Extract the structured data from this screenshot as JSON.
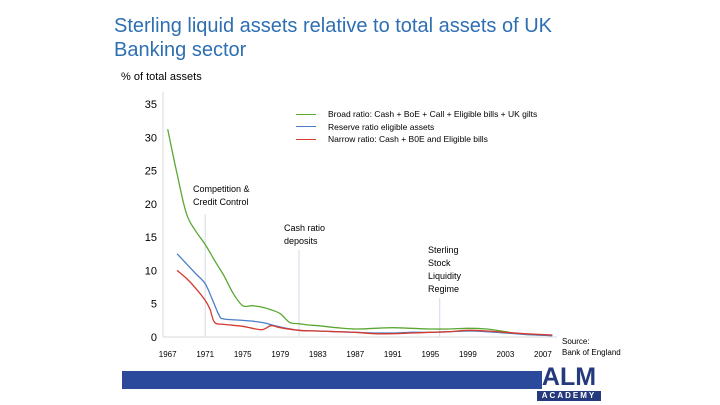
{
  "title": "Sterling liquid assets relative to total assets of UK Banking sector",
  "y_unit_label": "% of total assets",
  "source": "Source:\nBank of England",
  "logo": {
    "main": "ALM",
    "sub": "ACADEMY"
  },
  "colors": {
    "title": "#2e6fb3",
    "broad": "#5aa832",
    "reserve": "#4a7ec6",
    "narrow": "#d43a2e",
    "band": "#2b4a9b"
  },
  "annotations": [
    {
      "id": "cc",
      "text": "Competition &\nCredit Control",
      "x": 1971
    },
    {
      "id": "cash",
      "text": "Cash ratio\ndeposits",
      "x": 1981
    },
    {
      "id": "sterling",
      "text": "Sterling\nStock\nLiquidity\nRegime",
      "x": 1996
    }
  ],
  "chart_data": {
    "type": "line",
    "title": "Sterling liquid assets relative to total assets of UK Banking sector",
    "xlabel": "",
    "ylabel": "% of total assets",
    "xlim": [
      1966.5,
      2008.5
    ],
    "ylim": [
      0,
      35
    ],
    "x_ticks": [
      1967,
      1971,
      1975,
      1979,
      1983,
      1987,
      1991,
      1995,
      1999,
      2003,
      2007
    ],
    "y_ticks": [
      0,
      5,
      10,
      15,
      20,
      25,
      30,
      35
    ],
    "grid": false,
    "legend_position": "top-right",
    "series": [
      {
        "name": "Broad ratio:  Cash + BoE + Call + Eligible bills + UK gilts",
        "color": "#5aa832",
        "points": [
          [
            1967,
            31.2
          ],
          [
            1968,
            24.5
          ],
          [
            1969,
            18.5
          ],
          [
            1970,
            15.9
          ],
          [
            1971,
            13.9
          ],
          [
            1972,
            11.5
          ],
          [
            1973,
            9.2
          ],
          [
            1974,
            6.5
          ],
          [
            1975,
            4.7
          ],
          [
            1976,
            4.7
          ],
          [
            1977,
            4.5
          ],
          [
            1978,
            4.1
          ],
          [
            1979,
            3.5
          ],
          [
            1980,
            2.2
          ],
          [
            1981,
            2.0
          ],
          [
            1982,
            1.8
          ],
          [
            1983,
            1.7
          ],
          [
            1985,
            1.4
          ],
          [
            1987,
            1.2
          ],
          [
            1989,
            1.3
          ],
          [
            1991,
            1.4
          ],
          [
            1993,
            1.3
          ],
          [
            1995,
            1.2
          ],
          [
            1997,
            1.2
          ],
          [
            1999,
            1.3
          ],
          [
            2001,
            1.2
          ],
          [
            2003,
            0.8
          ],
          [
            2005,
            0.4
          ],
          [
            2008,
            0.25
          ]
        ]
      },
      {
        "name": "Reserve ratio eligible assets",
        "color": "#4a7ec6",
        "points": [
          [
            1968,
            12.5
          ],
          [
            1969,
            11.0
          ],
          [
            1970,
            9.5
          ],
          [
            1971,
            8.0
          ],
          [
            1971.8,
            5.5
          ],
          [
            1972.5,
            3.2
          ],
          [
            1973,
            2.7
          ],
          [
            1975,
            2.5
          ],
          [
            1977,
            2.2
          ],
          [
            1979,
            1.5
          ],
          [
            1981,
            1.0
          ],
          [
            1983,
            0.9
          ],
          [
            1985,
            0.8
          ],
          [
            1987,
            0.7
          ],
          [
            1989,
            0.6
          ],
          [
            1991,
            0.6
          ],
          [
            1993,
            0.7
          ],
          [
            1995,
            0.7
          ],
          [
            1997,
            0.8
          ],
          [
            1999,
            0.9
          ],
          [
            2001,
            0.8
          ],
          [
            2003,
            0.6
          ],
          [
            2005,
            0.4
          ],
          [
            2008,
            0.2
          ]
        ]
      },
      {
        "name": "Narrow ratio: Cash + B0E and Eligible bills",
        "color": "#d43a2e",
        "points": [
          [
            1968,
            10.0
          ],
          [
            1969,
            8.8
          ],
          [
            1970,
            7.3
          ],
          [
            1971,
            5.5
          ],
          [
            1971.5,
            4.2
          ],
          [
            1972,
            2.2
          ],
          [
            1973,
            1.9
          ],
          [
            1975,
            1.6
          ],
          [
            1977,
            1.1
          ],
          [
            1978,
            1.7
          ],
          [
            1979,
            1.4
          ],
          [
            1981,
            1.0
          ],
          [
            1983,
            0.9
          ],
          [
            1985,
            0.8
          ],
          [
            1987,
            0.7
          ],
          [
            1989,
            0.5
          ],
          [
            1991,
            0.5
          ],
          [
            1993,
            0.6
          ],
          [
            1995,
            0.7
          ],
          [
            1997,
            0.8
          ],
          [
            1999,
            1.0
          ],
          [
            2001,
            0.9
          ],
          [
            2003,
            0.7
          ],
          [
            2005,
            0.5
          ],
          [
            2008,
            0.3
          ]
        ]
      }
    ]
  }
}
